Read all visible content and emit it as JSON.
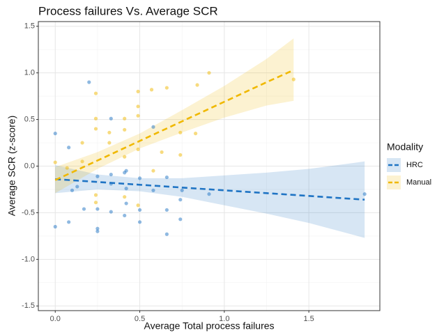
{
  "chart_data": {
    "type": "scatter",
    "title": "Process failures Vs. Average SCR",
    "x_label": "Average Total process failures",
    "y_label": "Average SCR (z-score)",
    "legend_title": "Modality",
    "xlim": [
      -0.1,
      1.92
    ],
    "ylim": [
      -1.55,
      1.55
    ],
    "xticks": [
      {
        "value": 0,
        "label": "0.0"
      },
      0.5,
      {
        "value": 1,
        "label": "1.0"
      },
      1.5
    ],
    "yticks": [
      -1.5,
      {
        "value": -1,
        "label": "-1.0"
      },
      -0.5,
      {
        "value": 0,
        "label": "0.0"
      },
      0.5,
      {
        "value": 1,
        "label": "1.0"
      },
      1.5
    ],
    "grid": true,
    "minor_grid": true,
    "series": [
      {
        "name": "HRC",
        "color": "#1f74c4",
        "x": [
          0.0,
          0.0,
          0.08,
          0.08,
          0.2,
          0.17,
          0.1,
          0.13,
          0.25,
          0.25,
          0.25,
          0.25,
          0.33,
          0.33,
          0.33,
          0.42,
          0.42,
          0.42,
          0.41,
          0.5,
          0.5,
          0.5,
          0.58,
          0.58,
          0.66,
          0.66,
          0.66,
          0.74,
          0.75,
          0.91,
          1.83,
          0.41,
          0.33,
          0.74
        ],
        "values": [
          0.35,
          -0.65,
          0.2,
          -0.6,
          0.9,
          -0.46,
          -0.26,
          -0.22,
          -0.67,
          -0.7,
          -0.46,
          -0.11,
          0.51,
          -0.19,
          -0.49,
          -0.05,
          -0.24,
          -0.4,
          -0.53,
          -0.47,
          -0.6,
          -0.13,
          0.42,
          -0.26,
          -0.12,
          -0.73,
          -0.47,
          -0.57,
          -0.26,
          -0.3,
          -0.3,
          -0.07,
          -0.09,
          -0.36
        ],
        "fit": {
          "x": [
            0,
            0.25,
            0.5,
            0.75,
            1.0,
            1.25,
            1.5,
            1.83
          ],
          "values": [
            -0.14,
            -0.17,
            -0.2,
            -0.23,
            -0.26,
            -0.29,
            -0.32,
            -0.36
          ],
          "lower": [
            -0.29,
            -0.25,
            -0.27,
            -0.33,
            -0.42,
            -0.51,
            -0.61,
            -0.77
          ],
          "upper": [
            0.01,
            -0.09,
            -0.13,
            -0.13,
            -0.1,
            -0.07,
            -0.03,
            0.05
          ]
        }
      },
      {
        "name": "Manual",
        "color": "#f0b800",
        "x": [
          0.0,
          0.91,
          1.41,
          0.84,
          0.83,
          0.74,
          0.66,
          0.57,
          0.49,
          0.49,
          0.49,
          0.49,
          0.49,
          0.41,
          0.41,
          0.41,
          0.32,
          0.32,
          0.24,
          0.24,
          0.24,
          0.24,
          0.24,
          0.16,
          0.16,
          0.07,
          0.58,
          0.63,
          0.41,
          0.74
        ],
        "values": [
          0.04,
          1.0,
          0.93,
          0.87,
          0.35,
          0.12,
          0.84,
          0.82,
          0.8,
          0.64,
          0.54,
          0.18,
          -0.42,
          0.51,
          0.39,
          0.1,
          0.36,
          0.25,
          0.78,
          0.51,
          0.4,
          -0.31,
          -0.39,
          0.25,
          0.05,
          -0.02,
          -0.05,
          0.15,
          -0.33,
          0.36
        ],
        "fit": {
          "x": [
            0,
            0.25,
            0.5,
            0.75,
            1.0,
            1.25,
            1.41
          ],
          "values": [
            -0.15,
            0.06,
            0.27,
            0.48,
            0.69,
            0.9,
            1.03
          ],
          "lower": [
            -0.29,
            -0.03,
            0.19,
            0.36,
            0.52,
            0.65,
            0.7
          ],
          "upper": [
            -0.01,
            0.15,
            0.35,
            0.6,
            0.86,
            1.15,
            1.37
          ]
        }
      }
    ]
  }
}
